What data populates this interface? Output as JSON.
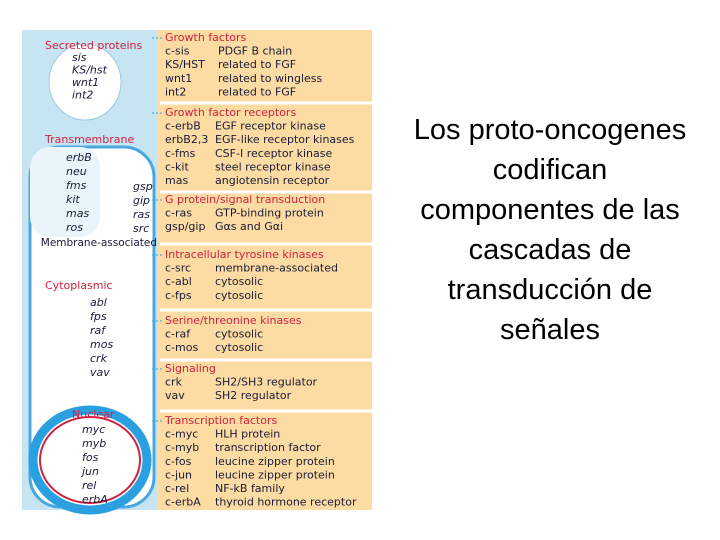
{
  "figure": {
    "compartments": [
      {
        "label": "Secreted proteins",
        "genes": [
          "sis",
          "KS/hst",
          "wnt1",
          "int2"
        ]
      },
      {
        "label": "Transmembrane",
        "genes": [
          "erbB",
          "neu",
          "fms",
          "kit",
          "mas",
          "ros"
        ]
      },
      {
        "label": "Membrane-associated",
        "genes": [
          "gsp",
          "gip",
          "ras",
          "src"
        ]
      },
      {
        "label": "Cytoplasmic",
        "genes": [
          "abl",
          "fps",
          "raf",
          "mos",
          "crk",
          "vav"
        ]
      },
      {
        "label": "Nuclear",
        "genes": [
          "myc",
          "myb",
          "fos",
          "jun",
          "rel",
          "erbA"
        ]
      }
    ],
    "sections": [
      {
        "title": "Growth factors",
        "rows": [
          [
            "c-sis",
            "PDGF B chain"
          ],
          [
            "KS/HST",
            "related to FGF"
          ],
          [
            "wnt1",
            "related to wingless"
          ],
          [
            "int2",
            "related to FGF"
          ]
        ]
      },
      {
        "title": "Growth factor receptors",
        "rows": [
          [
            "c-erbB",
            "EGF receptor kinase"
          ],
          [
            "erbB2,3",
            "EGF-like receptor kinases"
          ],
          [
            "c-fms",
            "CSF-I receptor kinase"
          ],
          [
            "c-kit",
            "steel receptor kinase"
          ],
          [
            "mas",
            "angiotensin receptor"
          ]
        ]
      },
      {
        "title": "G protein/signal transduction",
        "rows": [
          [
            "c-ras",
            "GTP-binding protein"
          ],
          [
            "gsp/gip",
            "Gαs and Gαi"
          ]
        ]
      },
      {
        "title": "Intracellular tyrosine kinases",
        "rows": [
          [
            "c-src",
            "membrane-associated"
          ],
          [
            "c-abl",
            "cytosolic"
          ],
          [
            "c-fps",
            "cytosolic"
          ]
        ]
      },
      {
        "title": "Serine/threonine kinases",
        "rows": [
          [
            "c-raf",
            "cytosolic"
          ],
          [
            "c-mos",
            "cytosolic"
          ]
        ]
      },
      {
        "title": "Signaling",
        "rows": [
          [
            "crk",
            "SH2/SH3 regulator"
          ],
          [
            "vav",
            "SH2 regulator"
          ]
        ]
      },
      {
        "title": "Transcription factors",
        "rows": [
          [
            "c-myc",
            "HLH protein"
          ],
          [
            "c-myb",
            "transcription factor"
          ],
          [
            "c-fos",
            "leucine zipper protein"
          ],
          [
            "c-jun",
            "leucine zipper protein"
          ],
          [
            "c-rel",
            "NF-kB family"
          ],
          [
            "c-erbA",
            "thyroid hormone receptor"
          ]
        ]
      }
    ]
  },
  "caption": {
    "lines": [
      "Los proto-oncogenes",
      "codifican",
      "componentes de las",
      "cascadas de",
      "transducción de",
      "señales"
    ]
  }
}
